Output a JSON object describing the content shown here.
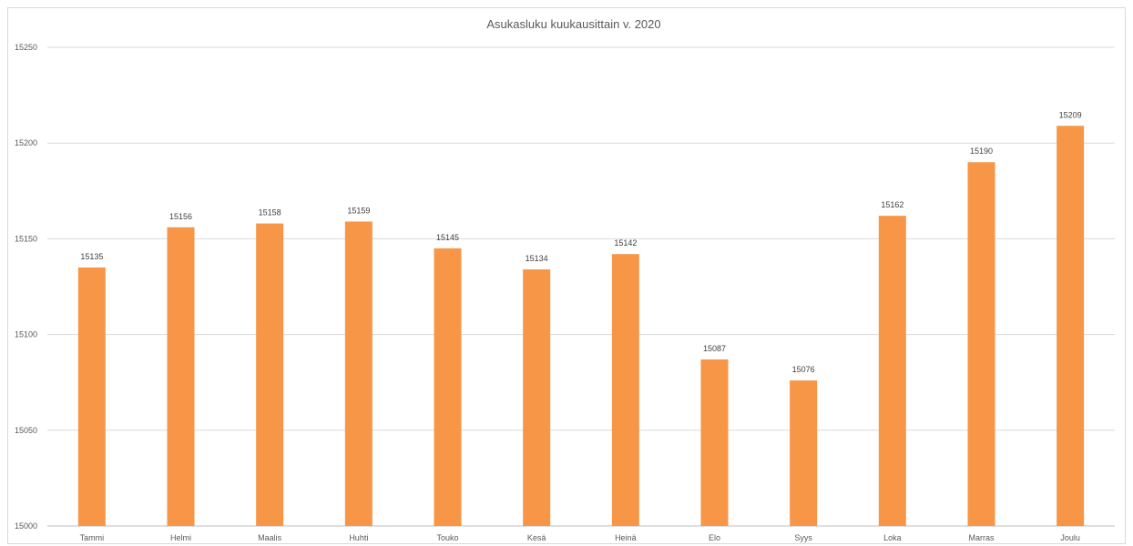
{
  "chart_data": {
    "type": "bar",
    "title": "Asukasluku kuukausittain v. 2020",
    "xlabel": "",
    "ylabel": "",
    "categories": [
      "Tammi",
      "Helmi",
      "Maalis",
      "Huhti",
      "Touko",
      "Kesä",
      "Heinä",
      "Elo",
      "Syys",
      "Loka",
      "Marras",
      "Joulu"
    ],
    "values": [
      15135,
      15156,
      15158,
      15159,
      15145,
      15134,
      15142,
      15087,
      15076,
      15162,
      15190,
      15209
    ],
    "ylim": [
      15000,
      15250
    ],
    "yticks": [
      15000,
      15050,
      15100,
      15150,
      15200,
      15250
    ],
    "grid": true,
    "legend": "none",
    "data_labels": true,
    "colors": {
      "bar": "#f79646",
      "grid": "#d9d9d9",
      "axis": "#bfbfbf",
      "text": "#595959"
    }
  }
}
